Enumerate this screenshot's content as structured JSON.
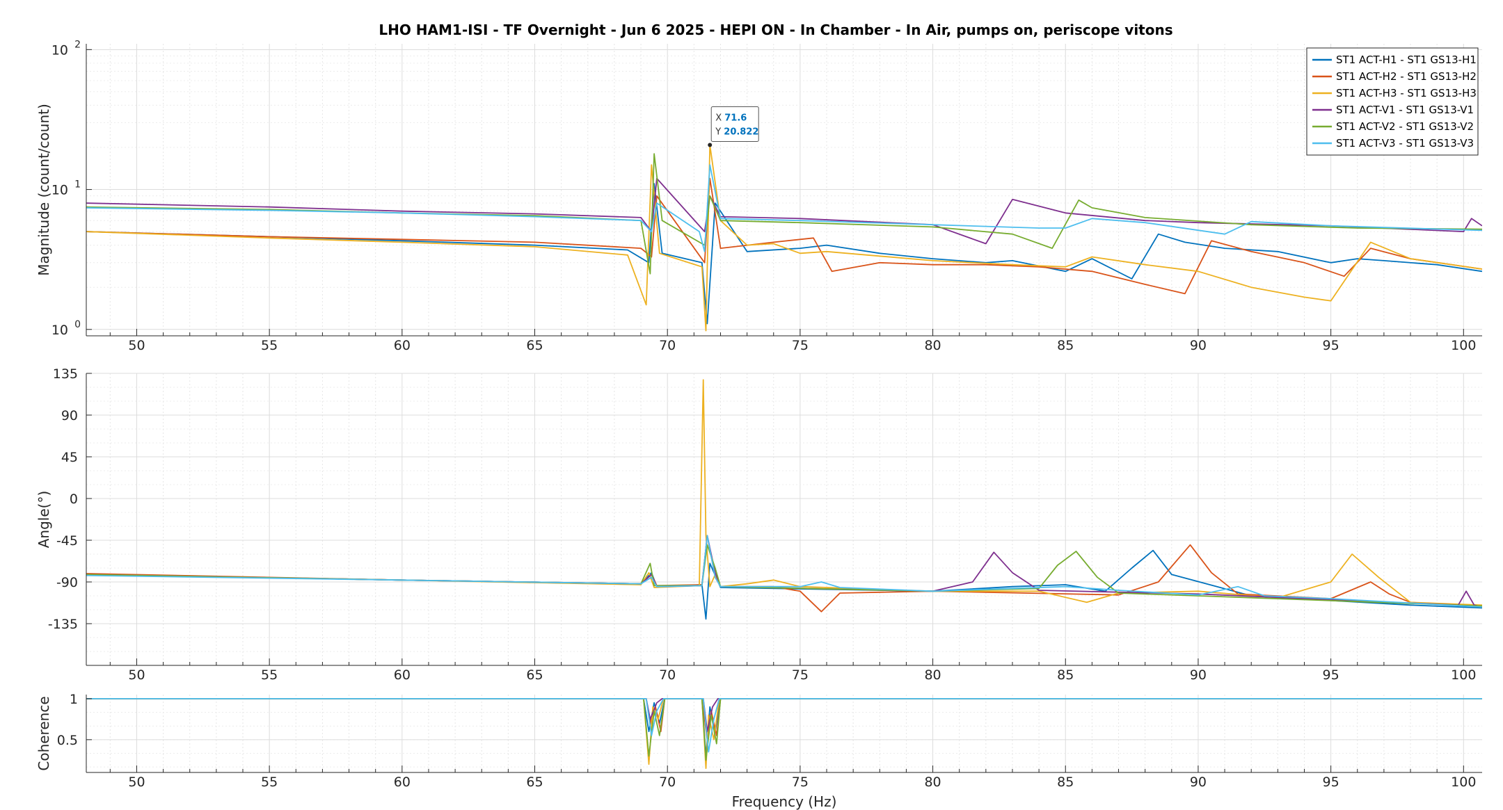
{
  "chart_data": {
    "title": "LHO HAM1-ISI - TF Overnight - Jun 6 2025 - HEPI ON - In Chamber - In Air, pumps on, periscope vitons",
    "type": "line",
    "colors": {
      "ST1 ACT-H1 - ST1 GS13-H1": "#0072bd",
      "ST1 ACT-H2 - ST1 GS13-H2": "#d95319",
      "ST1 ACT-H3 - ST1 GS13-H3": "#edb120",
      "ST1 ACT-V1 - ST1 GS13-V1": "#7e2f8e",
      "ST1 ACT-V2 - ST1 GS13-V2": "#77ac30",
      "ST1 ACT-V3 - ST1 GS13-V3": "#4dbeee"
    },
    "panels": [
      {
        "id": "magnitude",
        "ylabel": "Magnitude (count/count)",
        "yscale": "log",
        "ylim": [
          0.9,
          110
        ],
        "xlim": [
          48.1,
          100.7
        ],
        "xticks": [
          50,
          55,
          60,
          65,
          70,
          75,
          80,
          85,
          90,
          95,
          100
        ],
        "yticks": [
          1,
          10,
          100
        ],
        "ytick_labels": [
          "10^0",
          "10^1",
          "10^2"
        ],
        "grid": true,
        "legend": "top-right",
        "datatip": {
          "x": 71.6,
          "y": 20.822,
          "x_label": "X",
          "y_label": "Y",
          "x_text": "71.6",
          "y_text": "20.822"
        },
        "series": [
          {
            "name": "ST1 ACT-H1 - ST1 GS13-H1",
            "x": [
              48.1,
              55,
              60,
              65,
              68.5,
              69.3,
              69.5,
              69.8,
              71.3,
              71.5,
              71.8,
              73,
              75,
              76,
              78,
              80,
              82,
              83,
              85,
              86,
              87.5,
              88.5,
              89.5,
              91,
              93,
              95,
              96,
              97,
              99,
              100.7
            ],
            "y": [
              5.0,
              4.6,
              4.3,
              4.0,
              3.7,
              3.0,
              11.0,
              3.5,
              3.0,
              1.1,
              8.0,
              3.6,
              3.8,
              4.0,
              3.5,
              3.2,
              3.0,
              3.1,
              2.6,
              3.2,
              2.3,
              4.8,
              4.2,
              3.8,
              3.6,
              3.0,
              3.2,
              3.1,
              2.9,
              2.6
            ]
          },
          {
            "name": "ST1 ACT-H2 - ST1 GS13-H2",
            "x": [
              48.1,
              55,
              60,
              65,
              69,
              69.4,
              69.6,
              71.4,
              71.6,
              72,
              74,
              75.5,
              76.2,
              78,
              80,
              82,
              84,
              86,
              88,
              89.5,
              90.5,
              92,
              94,
              95.5,
              96.5,
              98,
              100.7
            ],
            "y": [
              5.0,
              4.6,
              4.4,
              4.2,
              3.8,
              3.3,
              9.0,
              3.0,
              12.0,
              3.8,
              4.2,
              4.5,
              2.6,
              3.0,
              2.9,
              2.9,
              2.8,
              2.6,
              2.1,
              1.8,
              4.3,
              3.6,
              3.0,
              2.4,
              3.8,
              3.2,
              2.7
            ]
          },
          {
            "name": "ST1 ACT-H3 - ST1 GS13-H3",
            "x": [
              48.1,
              55,
              60,
              65,
              68.5,
              69.2,
              69.4,
              69.7,
              71.3,
              71.45,
              71.6,
              72,
              73,
              74,
              75,
              76,
              80,
              83,
              85,
              86,
              88,
              90,
              92,
              94,
              95,
              96.5,
              98,
              100.7
            ],
            "y": [
              5.0,
              4.5,
              4.2,
              3.9,
              3.4,
              1.5,
              15.0,
              3.5,
              2.8,
              0.98,
              20.822,
              6.0,
              4.0,
              4.1,
              3.5,
              3.6,
              3.1,
              2.9,
              2.8,
              3.3,
              2.9,
              2.6,
              2.0,
              1.7,
              1.6,
              4.2,
              3.2,
              2.7
            ]
          },
          {
            "name": "ST1 ACT-V1 - ST1 GS13-V1",
            "x": [
              48.1,
              55,
              60,
              65,
              69,
              69.4,
              69.6,
              71.4,
              71.6,
              72,
              75,
              80,
              82,
              83,
              84,
              85,
              88,
              90,
              95,
              100,
              100.3,
              100.7
            ],
            "y": [
              8.0,
              7.5,
              7.0,
              6.7,
              6.3,
              5.0,
              12.0,
              5.0,
              9.0,
              6.4,
              6.2,
              5.6,
              4.1,
              8.5,
              7.6,
              6.8,
              6.0,
              5.8,
              5.5,
              5.0,
              6.2,
              5.5
            ]
          },
          {
            "name": "ST1 ACT-V2 - ST1 GS13-V2",
            "x": [
              48.1,
              55,
              60,
              65,
              69,
              69.35,
              69.5,
              69.8,
              71.4,
              71.6,
              72,
              75,
              80,
              83,
              84.5,
              85.5,
              86,
              88,
              92,
              96,
              100.7
            ],
            "y": [
              7.5,
              7.2,
              6.8,
              6.5,
              6.0,
              2.5,
              18.0,
              6.0,
              4.0,
              9.0,
              6.0,
              5.8,
              5.4,
              4.8,
              3.8,
              8.4,
              7.4,
              6.3,
              5.6,
              5.3,
              5.2
            ]
          },
          {
            "name": "ST1 ACT-V3 - ST1 GS13-V3",
            "x": [
              48.1,
              55,
              60,
              65,
              69,
              69.4,
              69.6,
              71.2,
              71.4,
              71.6,
              72,
              75,
              80,
              84,
              85,
              86,
              88,
              91,
              92,
              95,
              100.7
            ],
            "y": [
              7.4,
              7.1,
              6.8,
              6.4,
              6.0,
              5.0,
              8.0,
              5.0,
              3.6,
              15.0,
              6.2,
              6.0,
              5.6,
              5.3,
              5.3,
              6.2,
              5.8,
              4.8,
              5.9,
              5.5,
              5.1
            ]
          }
        ]
      },
      {
        "id": "phase",
        "ylabel": "Angle(°)",
        "yscale": "linear",
        "ylim": [
          -180,
          135
        ],
        "xlim": [
          48.1,
          100.7
        ],
        "xticks": [
          50,
          55,
          60,
          65,
          70,
          75,
          80,
          85,
          90,
          95,
          100
        ],
        "yticks": [
          -135,
          -90,
          -45,
          0,
          45,
          90,
          135
        ],
        "ytick_labels": [
          "-135",
          "-90",
          "-45",
          "0",
          "45",
          "90",
          "135"
        ],
        "grid": true,
        "series": [
          {
            "name": "ST1 ACT-H1 - ST1 GS13-H1",
            "x": [
              48.1,
              60,
              69,
              69.4,
              69.6,
              71.3,
              71.45,
              71.6,
              72,
              80,
              83,
              85,
              86.5,
              87.5,
              88.3,
              89,
              92,
              95,
              98,
              100.7
            ],
            "y": [
              -82,
              -88,
              -92,
              -80,
              -95,
              -93,
              -130,
              -70,
              -96,
              -100,
              -95,
              -93,
              -100,
              -75,
              -56,
              -82,
              -105,
              -110,
              -115,
              -118
            ]
          },
          {
            "name": "ST1 ACT-H2 - ST1 GS13-H2",
            "x": [
              48.1,
              60,
              69,
              69.4,
              69.6,
              71.3,
              71.5,
              71.8,
              72,
              74,
              75,
              75.8,
              76.5,
              80,
              87,
              88.5,
              89.7,
              90.5,
              91.5,
              95,
              96.5,
              97.2,
              98,
              100.7
            ],
            "y": [
              -81,
              -88,
              -92,
              -82,
              -94,
              -93,
              -40,
              -85,
              -95,
              -95,
              -100,
              -122,
              -102,
              -100,
              -104,
              -90,
              -50,
              -80,
              -103,
              -108,
              -90,
              -103,
              -112,
              -117
            ]
          },
          {
            "name": "ST1 ACT-H3 - ST1 GS13-H3",
            "x": [
              48.1,
              60,
              69,
              69.3,
              69.5,
              71.2,
              71.35,
              71.45,
              71.6,
              71.8,
              72,
              73,
              74,
              75,
              80,
              84,
              85.8,
              87,
              90,
              93,
              95,
              95.8,
              96.8,
              98,
              100.7
            ],
            "y": [
              -82,
              -88,
              -93,
              -80,
              -96,
              -94,
              128,
              -40,
              -95,
              -82,
              -95,
              -92,
              -88,
              -95,
              -100,
              -100,
              -112,
              -102,
              -100,
              -107,
              -90,
              -60,
              -85,
              -112,
              -115
            ]
          },
          {
            "name": "ST1 ACT-V1 - ST1 GS13-V1",
            "x": [
              48.1,
              60,
              69,
              69.4,
              69.6,
              71.3,
              71.5,
              71.8,
              72,
              80,
              81.5,
              82.3,
              83,
              84,
              90,
              99.8,
              100.1,
              100.4,
              100.7
            ],
            "y": [
              -82,
              -88,
              -92,
              -82,
              -95,
              -94,
              -40,
              -80,
              -95,
              -100,
              -90,
              -58,
              -80,
              -99,
              -103,
              -115,
              -100,
              -115,
              -117
            ]
          },
          {
            "name": "ST1 ACT-V2 - ST1 GS13-V2",
            "x": [
              48.1,
              60,
              69,
              69.35,
              69.5,
              71.3,
              71.5,
              71.8,
              72,
              80,
              84,
              84.7,
              85.4,
              86.2,
              87,
              92,
              100.7
            ],
            "y": [
              -82,
              -88,
              -92,
              -70,
              -94,
              -94,
              -50,
              -75,
              -95,
              -100,
              -97,
              -72,
              -57,
              -85,
              -102,
              -107,
              -116
            ]
          },
          {
            "name": "ST1 ACT-V3 - ST1 GS13-V3",
            "x": [
              48.1,
              60,
              69,
              69.4,
              69.6,
              71.3,
              71.5,
              71.8,
              72,
              75,
              75.8,
              76.5,
              80,
              83,
              85,
              87,
              90,
              91.5,
              92.5,
              95,
              100.7
            ],
            "y": [
              -83,
              -88,
              -92,
              -85,
              -95,
              -94,
              -40,
              -85,
              -95,
              -95,
              -90,
              -96,
              -100,
              -97,
              -95,
              -99,
              -104,
              -95,
              -105,
              -108,
              -117
            ]
          }
        ]
      },
      {
        "id": "coherence",
        "ylabel": "Coherence",
        "yscale": "linear",
        "ylim": [
          0.1,
          1.05
        ],
        "xlim": [
          48.1,
          100.7
        ],
        "xticks": [
          50,
          55,
          60,
          65,
          70,
          75,
          80,
          85,
          90,
          95,
          100
        ],
        "yticks": [
          0.5,
          1
        ],
        "ytick_labels": [
          "0.5",
          "1"
        ],
        "grid": true,
        "xlabel": "Frequency (Hz)",
        "series": [
          {
            "name": "ST1 ACT-H1 - ST1 GS13-H1",
            "x": [
              48.1,
              69.1,
              69.3,
              69.5,
              69.7,
              69.9,
              71.3,
              71.45,
              71.6,
              71.8,
              72.0,
              100.7
            ],
            "y": [
              1,
              1,
              0.6,
              0.95,
              0.7,
              1,
              1,
              0.3,
              0.9,
              0.6,
              1,
              1
            ]
          },
          {
            "name": "ST1 ACT-H2 - ST1 GS13-H2",
            "x": [
              48.1,
              69.2,
              69.35,
              69.55,
              69.75,
              69.9,
              71.3,
              71.5,
              71.65,
              71.85,
              72.0,
              100.7
            ],
            "y": [
              1,
              1,
              0.7,
              0.9,
              0.6,
              1,
              1,
              0.5,
              0.85,
              0.55,
              1,
              1
            ]
          },
          {
            "name": "ST1 ACT-H3 - ST1 GS13-H3",
            "x": [
              48.1,
              69.1,
              69.3,
              69.45,
              69.65,
              69.85,
              71.3,
              71.45,
              71.55,
              71.75,
              71.95,
              100.7
            ],
            "y": [
              1,
              1,
              0.2,
              0.9,
              0.75,
              1,
              1,
              0.15,
              0.8,
              0.5,
              1,
              1
            ]
          },
          {
            "name": "ST1 ACT-V1 - ST1 GS13-V1",
            "x": [
              48.1,
              69.2,
              69.35,
              69.6,
              69.8,
              71.35,
              71.5,
              71.7,
              71.9,
              100.7
            ],
            "y": [
              1,
              1,
              0.75,
              0.95,
              1,
              1,
              0.6,
              0.9,
              1,
              1
            ]
          },
          {
            "name": "ST1 ACT-V2 - ST1 GS13-V2",
            "x": [
              48.1,
              69.1,
              69.3,
              69.5,
              69.7,
              69.9,
              71.3,
              71.45,
              71.65,
              71.85,
              72.0,
              100.7
            ],
            "y": [
              1,
              1,
              0.3,
              0.85,
              0.55,
              1,
              1,
              0.25,
              0.8,
              0.45,
              1,
              1
            ]
          },
          {
            "name": "ST1 ACT-V3 - ST1 GS13-V3",
            "x": [
              48.1,
              69.2,
              69.4,
              69.6,
              69.85,
              71.35,
              71.55,
              71.75,
              71.95,
              100.7
            ],
            "y": [
              1,
              1,
              0.55,
              0.85,
              1,
              1,
              0.35,
              0.75,
              1,
              1
            ]
          }
        ]
      }
    ]
  }
}
